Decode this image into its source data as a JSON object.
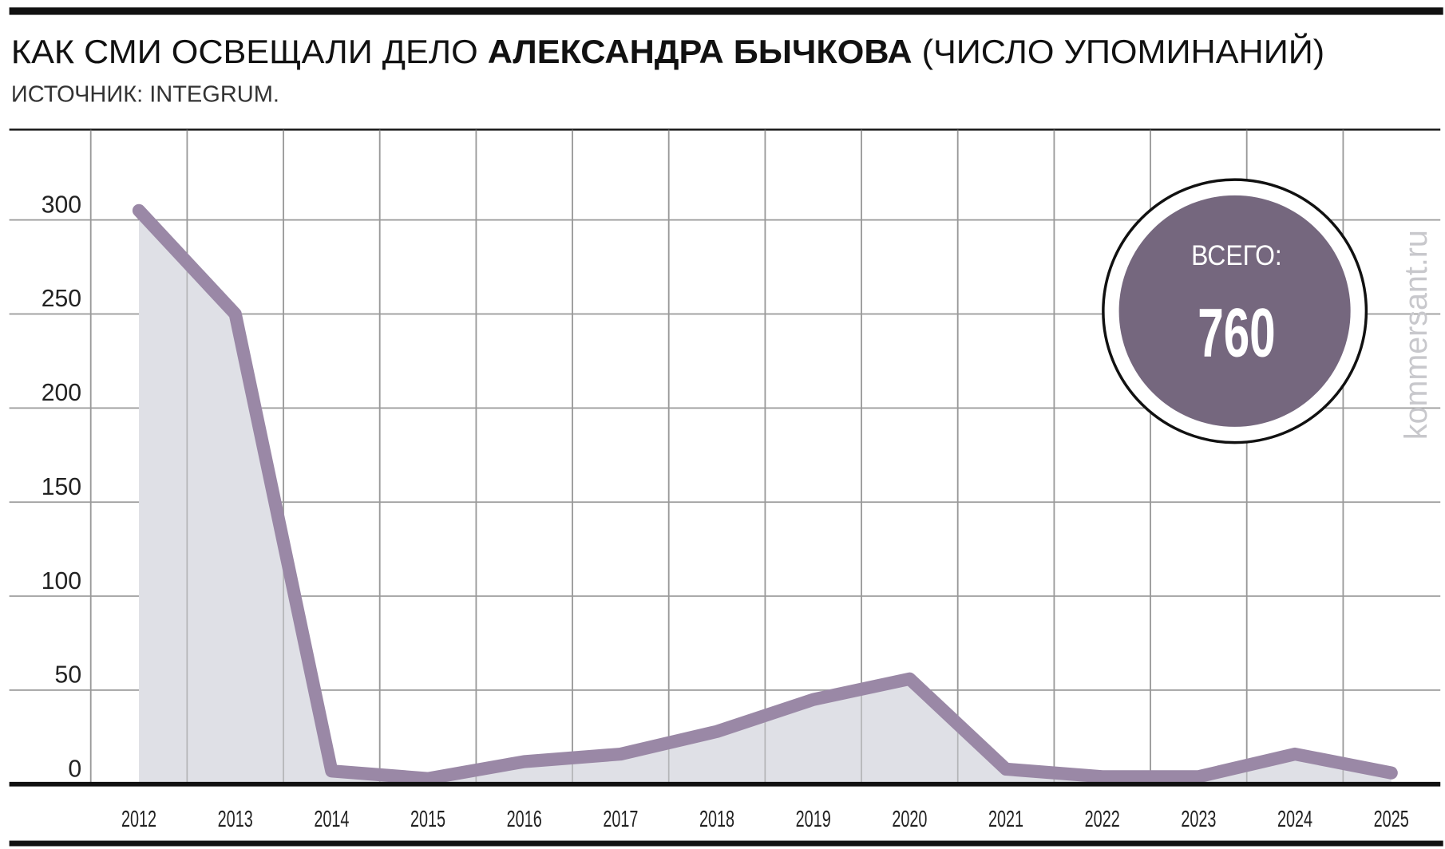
{
  "chart_data": {
    "type": "line",
    "title_parts": [
      "КАК СМИ ОСВЕЩАЛИ ДЕЛО",
      "АЛЕКСАНДРА БЫЧКОВА",
      "(ЧИСЛО УПОМИНАНИЙ)"
    ],
    "subtitle": "ИСТОЧНИК: INTEGRUM.",
    "categories": [
      "2012",
      "2013",
      "2014",
      "2015",
      "2016",
      "2017",
      "2018",
      "2019",
      "2020",
      "2021",
      "2022",
      "2023",
      "2024",
      "2025"
    ],
    "values": [
      305,
      250,
      7,
      3,
      12,
      16,
      28,
      45,
      56,
      8,
      4,
      4,
      16,
      6
    ],
    "color": "#9a88a6",
    "area_color": "#dfe0e6",
    "ylim": [
      0,
      350
    ],
    "yticks": [
      0,
      50,
      100,
      150,
      200,
      250,
      300
    ],
    "grid": true,
    "total_label": "ВСЕГО:",
    "total": 760,
    "watermark": "kommersant.ru"
  }
}
